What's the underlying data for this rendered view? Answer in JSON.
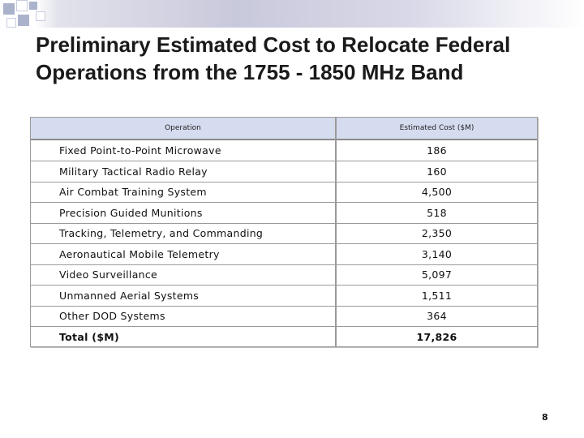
{
  "slide": {
    "title": "Preliminary Estimated Cost to Relocate Federal Operations from the 1755 - 1850 MHz Band",
    "page_number": "8"
  },
  "table": {
    "headers": {
      "operation": "Operation",
      "cost": "Estimated Cost ($M)"
    },
    "rows": [
      {
        "operation": "Fixed Point-to-Point Microwave",
        "cost": "186"
      },
      {
        "operation": "Military Tactical Radio Relay",
        "cost": "160"
      },
      {
        "operation": "Air Combat Training System",
        "cost": "4,500"
      },
      {
        "operation": "Precision Guided Munitions",
        "cost": "518"
      },
      {
        "operation": "Tracking, Telemetry, and Commanding",
        "cost": "2,350"
      },
      {
        "operation": "Aeronautical Mobile Telemetry",
        "cost": "3,140"
      },
      {
        "operation": "Video Surveillance",
        "cost": "5,097"
      },
      {
        "operation": "Unmanned Aerial Systems",
        "cost": "1,511"
      },
      {
        "operation": "Other DOD Systems",
        "cost": "364"
      },
      {
        "operation": "Total ($M)",
        "cost": "17,826"
      }
    ]
  }
}
